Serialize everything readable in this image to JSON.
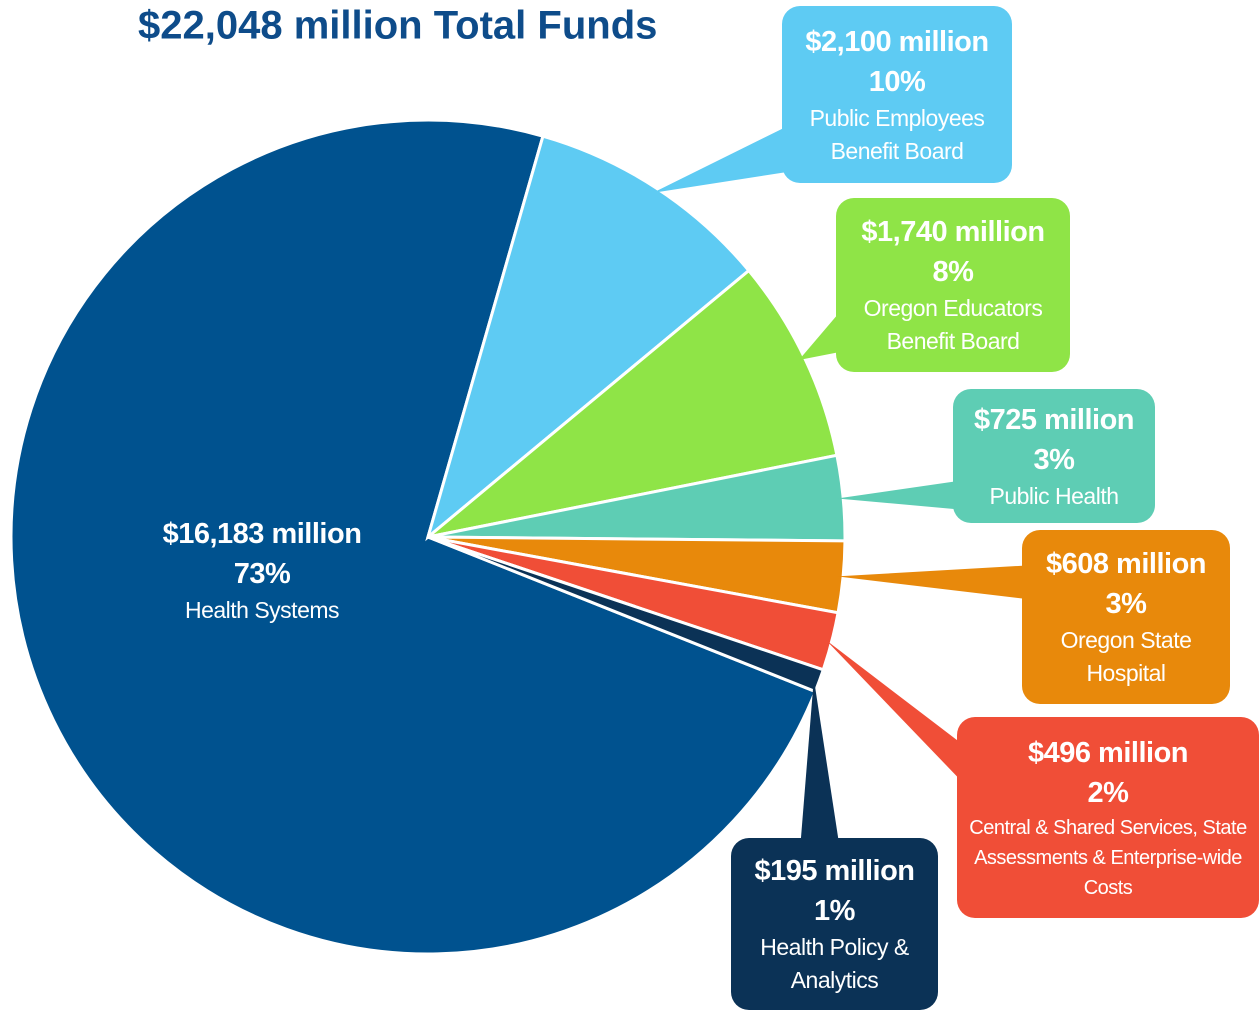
{
  "chart_data": {
    "type": "pie",
    "title": "$22,048 million Total Funds",
    "categories": [
      "Health Systems",
      "Public Employees Benefit Board",
      "Oregon Educators Benefit Board",
      "Public Health",
      "Oregon State Hospital",
      "Central & Shared Services, State Assessments & Enterprise-wide Costs",
      "Health Policy & Analytics"
    ],
    "values": [
      16183,
      2100,
      1740,
      725,
      608,
      496,
      195
    ],
    "value_labels": [
      "$16,183 million",
      "$2,100 million",
      "$1,740 million",
      "$725 million",
      "$608 million",
      "$496 million",
      "$195 million"
    ],
    "percentages": [
      73,
      10,
      8,
      3,
      3,
      2,
      1
    ],
    "percentage_labels": [
      "73%",
      "10%",
      "8%",
      "3%",
      "3%",
      "2%",
      "1%"
    ],
    "colors": [
      "#00528f",
      "#5ecbf3",
      "#8fe447",
      "#5ecdb4",
      "#e8890b",
      "#f04e37",
      "#0b3256"
    ]
  }
}
